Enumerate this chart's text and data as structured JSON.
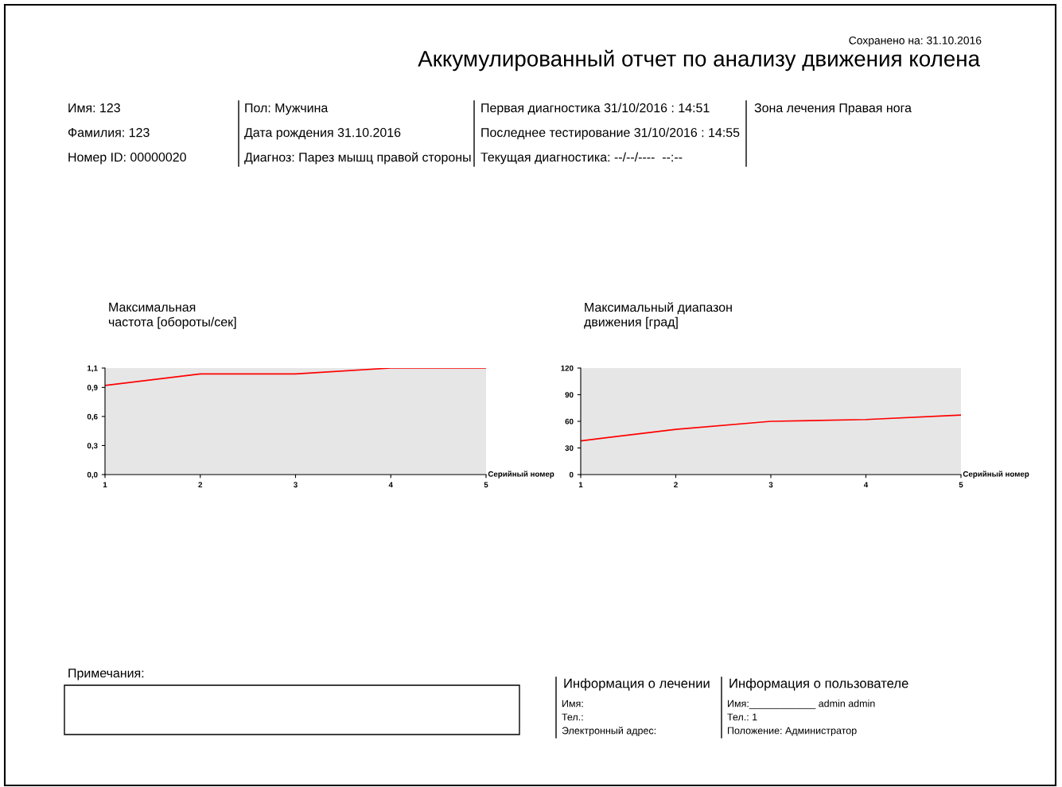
{
  "chart_data": [
    {
      "type": "other",
      "title": "Аккумулированный отчет по анализу движения колена",
      "annotations": [
        "Сохранено на: 31.10.2016",
        "Имя: 123",
        "Фамилия: 123",
        "Номер ID: 00000020",
        "Пол: Мужчина",
        "Дата рождения 31.10.2016",
        "Диагноз: Парез мышц правой стороны",
        "Первая диагностика 31/10/2016 : 14:51",
        "Последнее тестирование 31/10/2016 : 14:55",
        "Текущая диагностика: --/--/----  --:--",
        "Зона лечения Правая нога",
        "Примечания:",
        "Информация о лечении",
        "Имя:",
        "Тел.:",
        "Электронный адрес:",
        "Информация о пользователе",
        "Имя:____________ admin admin",
        "Тел.: 1",
        "Положение: Администратор"
      ]
    },
    {
      "type": "line",
      "title": "Максимальная\nчастота [обороты/сек]",
      "xlabel": "Серийный номер",
      "x": [
        1,
        2,
        3,
        4,
        5
      ],
      "series": [
        {
          "color": "#ff0000",
          "values": [
            0.92,
            1.04,
            1.04,
            1.1,
            1.1
          ]
        }
      ],
      "xlim": [
        1,
        5
      ],
      "xticks": [
        1,
        2,
        3,
        4,
        5
      ],
      "ylim": [
        0,
        1.1
      ],
      "yticks": [
        {
          "value": 0,
          "label": "0,0"
        },
        {
          "value": 0.3,
          "label": "0,3"
        },
        {
          "value": 0.6,
          "label": "0,6"
        },
        {
          "value": 0.9,
          "label": "0,9"
        },
        {
          "value": 1.1,
          "label": "1,1"
        }
      ]
    },
    {
      "type": "line",
      "title": "Максимальный диапазон\nдвижения [град]",
      "xlabel": "Серийный номер",
      "x": [
        1,
        2,
        3,
        4,
        5
      ],
      "series": [
        {
          "color": "#ff0000",
          "values": [
            38,
            51,
            60,
            62,
            67
          ]
        }
      ],
      "xlim": [
        1,
        5
      ],
      "xticks": [
        1,
        2,
        3,
        4,
        5
      ],
      "ylim": [
        0,
        120
      ],
      "yticks": [
        0,
        30,
        60,
        90,
        120
      ]
    }
  ]
}
